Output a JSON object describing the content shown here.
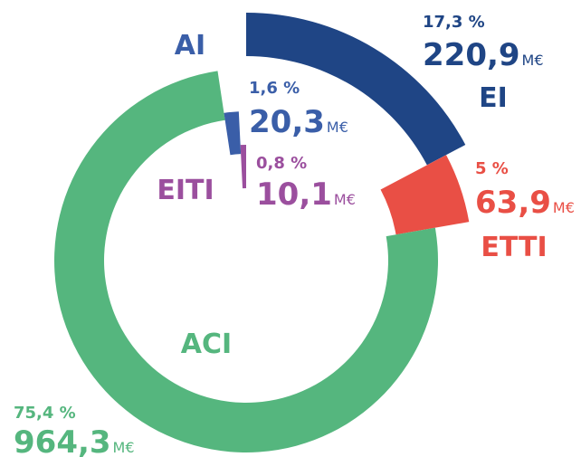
{
  "chart_data": {
    "type": "donut",
    "unit": "M€",
    "categories": [
      "EI",
      "ETTI",
      "ACI",
      "AI",
      "EITI"
    ],
    "values": [
      220.9,
      63.9,
      964.3,
      20.3,
      10.1
    ],
    "value_labels": [
      "220,9",
      "63,9",
      "964,3",
      "20,3",
      "10,1"
    ],
    "shares": [
      17.3,
      5,
      75.4,
      1.6,
      0.8
    ],
    "share_labels": [
      "17,3 %",
      "5 %",
      "75,4 %",
      "1,6 %",
      "0,8 %"
    ],
    "colors": [
      "#1f4585",
      "#e94f45",
      "#55b67e",
      "#3a5ea8",
      "#9b4f9e"
    ]
  }
}
